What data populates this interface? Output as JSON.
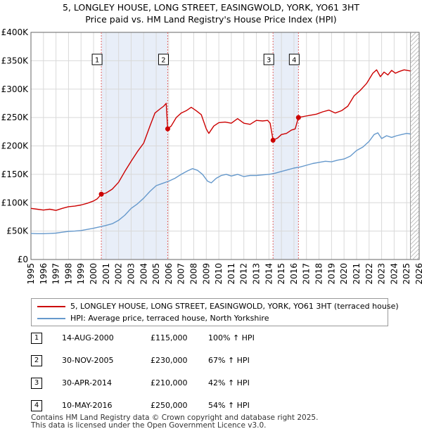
{
  "chart_data": {
    "type": "line",
    "title": "5, LONGLEY HOUSE, LONG STREET, EASINGWOLD, YORK, YO61 3HT",
    "subtitle": "Price paid vs. HM Land Registry's House Price Index (HPI)",
    "xlim": [
      1995,
      2026
    ],
    "ylim": [
      0,
      400000
    ],
    "x_ticks": [
      "1995",
      "1996",
      "1997",
      "1998",
      "1999",
      "2000",
      "2001",
      "2002",
      "2003",
      "2004",
      "2005",
      "2006",
      "2007",
      "2008",
      "2009",
      "2010",
      "2011",
      "2012",
      "2013",
      "2014",
      "2015",
      "2016",
      "2017",
      "2018",
      "2019",
      "2020",
      "2021",
      "2022",
      "2023",
      "2024",
      "2025",
      "2026"
    ],
    "y_ticks": [
      {
        "value": 0,
        "label": "£0"
      },
      {
        "value": 50000,
        "label": "£50K"
      },
      {
        "value": 100000,
        "label": "£100K"
      },
      {
        "value": 150000,
        "label": "£150K"
      },
      {
        "value": 200000,
        "label": "£200K"
      },
      {
        "value": 250000,
        "label": "£250K"
      },
      {
        "value": 300000,
        "label": "£300K"
      },
      {
        "value": 350000,
        "label": "£350K"
      },
      {
        "value": 400000,
        "label": "£400K"
      }
    ],
    "data_end_x": 2025.3,
    "highlight_bands": [
      [
        2000.62,
        2005.92
      ],
      [
        2014.33,
        2016.36
      ]
    ],
    "series": [
      {
        "name": "5, LONGLEY HOUSE, LONG STREET, EASINGWOLD, YORK, YO61 3HT (terraced house)",
        "color": "#cc0000",
        "points": [
          [
            1995.0,
            90000
          ],
          [
            1995.5,
            88500
          ],
          [
            1996.0,
            87000
          ],
          [
            1996.5,
            88500
          ],
          [
            1997.0,
            86500
          ],
          [
            1997.5,
            90000
          ],
          [
            1998.0,
            93000
          ],
          [
            1998.5,
            94000
          ],
          [
            1999.0,
            96000
          ],
          [
            1999.5,
            99000
          ],
          [
            2000.0,
            103000
          ],
          [
            2000.3,
            107000
          ],
          [
            2000.62,
            115000
          ],
          [
            2001.0,
            117000
          ],
          [
            2001.5,
            124000
          ],
          [
            2002.0,
            136000
          ],
          [
            2002.5,
            155000
          ],
          [
            2003.0,
            173000
          ],
          [
            2003.5,
            190000
          ],
          [
            2004.0,
            205000
          ],
          [
            2004.5,
            235000
          ],
          [
            2004.9,
            258000
          ],
          [
            2005.3,
            265000
          ],
          [
            2005.6,
            270000
          ],
          [
            2005.8,
            275000
          ],
          [
            2005.92,
            230000
          ],
          [
            2006.2,
            235000
          ],
          [
            2006.6,
            250000
          ],
          [
            2007.0,
            258000
          ],
          [
            2007.4,
            262000
          ],
          [
            2007.8,
            268000
          ],
          [
            2008.2,
            262000
          ],
          [
            2008.6,
            255000
          ],
          [
            2009.0,
            230000
          ],
          [
            2009.2,
            222000
          ],
          [
            2009.6,
            235000
          ],
          [
            2010.0,
            241000
          ],
          [
            2010.5,
            242000
          ],
          [
            2011.0,
            240000
          ],
          [
            2011.5,
            248000
          ],
          [
            2012.0,
            240000
          ],
          [
            2012.5,
            238000
          ],
          [
            2013.0,
            245000
          ],
          [
            2013.5,
            244000
          ],
          [
            2013.9,
            245000
          ],
          [
            2014.1,
            240000
          ],
          [
            2014.33,
            210000
          ],
          [
            2014.7,
            214000
          ],
          [
            2015.0,
            220000
          ],
          [
            2015.4,
            222000
          ],
          [
            2015.8,
            228000
          ],
          [
            2016.1,
            230000
          ],
          [
            2016.36,
            250000
          ],
          [
            2016.8,
            252000
          ],
          [
            2017.3,
            254000
          ],
          [
            2017.8,
            256000
          ],
          [
            2018.3,
            260000
          ],
          [
            2018.8,
            263000
          ],
          [
            2019.3,
            258000
          ],
          [
            2019.8,
            262000
          ],
          [
            2020.3,
            270000
          ],
          [
            2020.8,
            288000
          ],
          [
            2021.3,
            298000
          ],
          [
            2021.8,
            310000
          ],
          [
            2022.3,
            328000
          ],
          [
            2022.6,
            334000
          ],
          [
            2022.9,
            322000
          ],
          [
            2023.2,
            330000
          ],
          [
            2023.5,
            325000
          ],
          [
            2023.8,
            333000
          ],
          [
            2024.1,
            328000
          ],
          [
            2024.4,
            331000
          ],
          [
            2024.8,
            334000
          ],
          [
            2025.3,
            332000
          ]
        ]
      },
      {
        "name": "HPI: Average price, terraced house, North Yorkshire",
        "color": "#6699cc",
        "points": [
          [
            1995.0,
            46000
          ],
          [
            1995.5,
            45500
          ],
          [
            1996.0,
            45500
          ],
          [
            1996.5,
            46000
          ],
          [
            1997.0,
            46500
          ],
          [
            1997.5,
            48000
          ],
          [
            1998.0,
            49500
          ],
          [
            1998.5,
            50000
          ],
          [
            1999.0,
            51000
          ],
          [
            1999.5,
            53000
          ],
          [
            2000.0,
            55000
          ],
          [
            2000.5,
            57500
          ],
          [
            2001.0,
            60000
          ],
          [
            2001.5,
            63000
          ],
          [
            2002.0,
            69000
          ],
          [
            2002.5,
            78000
          ],
          [
            2003.0,
            90000
          ],
          [
            2003.5,
            98000
          ],
          [
            2004.0,
            108000
          ],
          [
            2004.5,
            120000
          ],
          [
            2005.0,
            130000
          ],
          [
            2005.5,
            134000
          ],
          [
            2006.0,
            138000
          ],
          [
            2006.5,
            143000
          ],
          [
            2007.0,
            150000
          ],
          [
            2007.5,
            156000
          ],
          [
            2007.9,
            160000
          ],
          [
            2008.3,
            157000
          ],
          [
            2008.7,
            150000
          ],
          [
            2009.1,
            138000
          ],
          [
            2009.4,
            135000
          ],
          [
            2009.8,
            143000
          ],
          [
            2010.2,
            148000
          ],
          [
            2010.6,
            150000
          ],
          [
            2011.0,
            147000
          ],
          [
            2011.5,
            150000
          ],
          [
            2012.0,
            146000
          ],
          [
            2012.5,
            148000
          ],
          [
            2013.0,
            148000
          ],
          [
            2013.5,
            149000
          ],
          [
            2014.0,
            150000
          ],
          [
            2014.5,
            152000
          ],
          [
            2015.0,
            155000
          ],
          [
            2015.5,
            158000
          ],
          [
            2016.0,
            161000
          ],
          [
            2016.5,
            163000
          ],
          [
            2017.0,
            166000
          ],
          [
            2017.5,
            169000
          ],
          [
            2018.0,
            171000
          ],
          [
            2018.5,
            173000
          ],
          [
            2019.0,
            172000
          ],
          [
            2019.5,
            175000
          ],
          [
            2020.0,
            177000
          ],
          [
            2020.5,
            182000
          ],
          [
            2021.0,
            192000
          ],
          [
            2021.5,
            198000
          ],
          [
            2022.0,
            208000
          ],
          [
            2022.4,
            220000
          ],
          [
            2022.7,
            223000
          ],
          [
            2023.0,
            213000
          ],
          [
            2023.4,
            218000
          ],
          [
            2023.8,
            215000
          ],
          [
            2024.2,
            218000
          ],
          [
            2024.6,
            220000
          ],
          [
            2025.0,
            222000
          ],
          [
            2025.3,
            221000
          ]
        ]
      }
    ],
    "transactions": [
      {
        "id": "1",
        "x": 2000.62,
        "price_value": 115000,
        "date": "14-AUG-2000",
        "price": "£115,000",
        "hpi": "100% ↑ HPI"
      },
      {
        "id": "2",
        "x": 2005.92,
        "price_value": 230000,
        "date": "30-NOV-2005",
        "price": "£230,000",
        "hpi": "67% ↑ HPI"
      },
      {
        "id": "3",
        "x": 2014.33,
        "price_value": 210000,
        "date": "30-APR-2014",
        "price": "£210,000",
        "hpi": "42% ↑ HPI"
      },
      {
        "id": "4",
        "x": 2016.36,
        "price_value": 250000,
        "date": "10-MAY-2016",
        "price": "£250,000",
        "hpi": "54% ↑ HPI"
      }
    ],
    "legend": [
      {
        "label": "5, LONGLEY HOUSE, LONG STREET, EASINGWOLD, YORK, YO61 3HT (terraced house)",
        "color": "#cc0000"
      },
      {
        "label": "HPI: Average price, terraced house, North Yorkshire",
        "color": "#6699cc"
      }
    ]
  },
  "footer": {
    "line1": "Contains HM Land Registry data © Crown copyright and database right 2025.",
    "line2": "This data is licensed under the Open Government Licence v3.0."
  }
}
